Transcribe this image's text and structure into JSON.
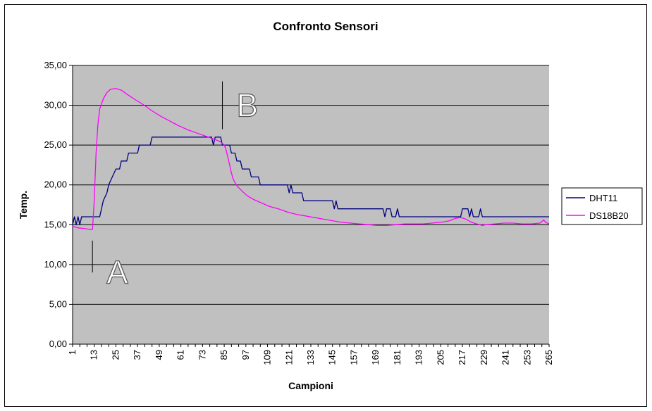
{
  "chart_data": {
    "type": "line",
    "title": "Confronto Sensori",
    "xlabel": "Campioni",
    "ylabel": "Temp.",
    "ylim": [
      0,
      35
    ],
    "xlim": [
      1,
      265
    ],
    "grid": true,
    "legend_position": "right",
    "plot_background": "#c0c0c0",
    "y_ticks": [
      "0,00",
      "5,00",
      "10,00",
      "15,00",
      "20,00",
      "25,00",
      "30,00",
      "35,00"
    ],
    "x_ticks": [
      "1",
      "13",
      "25",
      "37",
      "49",
      "61",
      "73",
      "85",
      "97",
      "109",
      "121",
      "133",
      "145",
      "157",
      "169",
      "181",
      "193",
      "205",
      "217",
      "229",
      "241",
      "253",
      "265"
    ],
    "series": [
      {
        "name": "DHT11",
        "color": "#000080",
        "points": [
          [
            1,
            15
          ],
          [
            2,
            16
          ],
          [
            3,
            15
          ],
          [
            4,
            16
          ],
          [
            5,
            15
          ],
          [
            6,
            16
          ],
          [
            7,
            16
          ],
          [
            13,
            16
          ],
          [
            16,
            16
          ],
          [
            17,
            17
          ],
          [
            18,
            18
          ],
          [
            20,
            19
          ],
          [
            21,
            20
          ],
          [
            23,
            21
          ],
          [
            25,
            22
          ],
          [
            27,
            22
          ],
          [
            28,
            23
          ],
          [
            31,
            23
          ],
          [
            32,
            24
          ],
          [
            37,
            24
          ],
          [
            38,
            25
          ],
          [
            44,
            25
          ],
          [
            45,
            26
          ],
          [
            78,
            26
          ],
          [
            79,
            25
          ],
          [
            80,
            26
          ],
          [
            83,
            26
          ],
          [
            84,
            25
          ],
          [
            88,
            25
          ],
          [
            89,
            24
          ],
          [
            91,
            24
          ],
          [
            92,
            23
          ],
          [
            94,
            23
          ],
          [
            95,
            22
          ],
          [
            99,
            22
          ],
          [
            100,
            21
          ],
          [
            104,
            21
          ],
          [
            105,
            20
          ],
          [
            120,
            20
          ],
          [
            121,
            19
          ],
          [
            122,
            20
          ],
          [
            123,
            19
          ],
          [
            128,
            19
          ],
          [
            129,
            18
          ],
          [
            145,
            18
          ],
          [
            146,
            17
          ],
          [
            147,
            18
          ],
          [
            148,
            17
          ],
          [
            173,
            17
          ],
          [
            174,
            16
          ],
          [
            175,
            17
          ],
          [
            177,
            17
          ],
          [
            178,
            16
          ],
          [
            180,
            16
          ],
          [
            181,
            17
          ],
          [
            182,
            16
          ],
          [
            216,
            16
          ],
          [
            217,
            17
          ],
          [
            220,
            17
          ],
          [
            221,
            16
          ],
          [
            222,
            17
          ],
          [
            223,
            16
          ],
          [
            226,
            16
          ],
          [
            227,
            17
          ],
          [
            228,
            16
          ],
          [
            265,
            16
          ]
        ]
      },
      {
        "name": "DS18B20",
        "color": "#ff00ff",
        "points": [
          [
            1,
            14.8
          ],
          [
            4,
            14.6
          ],
          [
            8,
            14.5
          ],
          [
            11,
            14.4
          ],
          [
            12,
            14.4
          ],
          [
            13,
            18
          ],
          [
            14,
            24
          ],
          [
            15,
            27.5
          ],
          [
            16,
            29.5
          ],
          [
            18,
            30.8
          ],
          [
            20,
            31.6
          ],
          [
            22,
            32
          ],
          [
            25,
            32.1
          ],
          [
            28,
            31.9
          ],
          [
            31,
            31.4
          ],
          [
            35,
            30.8
          ],
          [
            40,
            30.1
          ],
          [
            45,
            29.3
          ],
          [
            50,
            28.6
          ],
          [
            55,
            28
          ],
          [
            60,
            27.4
          ],
          [
            65,
            26.9
          ],
          [
            70,
            26.5
          ],
          [
            75,
            26.1
          ],
          [
            80,
            25.7
          ],
          [
            83,
            25.4
          ],
          [
            85,
            25
          ],
          [
            86,
            24.4
          ],
          [
            87,
            23.5
          ],
          [
            88,
            22.5
          ],
          [
            89,
            21.5
          ],
          [
            90,
            20.7
          ],
          [
            92,
            19.9
          ],
          [
            95,
            19.2
          ],
          [
            98,
            18.6
          ],
          [
            101,
            18.2
          ],
          [
            105,
            17.8
          ],
          [
            110,
            17.3
          ],
          [
            115,
            17
          ],
          [
            120,
            16.6
          ],
          [
            125,
            16.3
          ],
          [
            130,
            16.1
          ],
          [
            135,
            15.9
          ],
          [
            140,
            15.7
          ],
          [
            145,
            15.5
          ],
          [
            150,
            15.3
          ],
          [
            155,
            15.2
          ],
          [
            160,
            15.1
          ],
          [
            165,
            15
          ],
          [
            170,
            14.9
          ],
          [
            175,
            14.9
          ],
          [
            180,
            15
          ],
          [
            185,
            15.1
          ],
          [
            190,
            15.1
          ],
          [
            195,
            15.1
          ],
          [
            200,
            15.2
          ],
          [
            205,
            15.3
          ],
          [
            210,
            15.5
          ],
          [
            213,
            15.8
          ],
          [
            216,
            15.9
          ],
          [
            219,
            15.7
          ],
          [
            222,
            15.3
          ],
          [
            225,
            15.1
          ],
          [
            228,
            14.9
          ],
          [
            230,
            15
          ],
          [
            235,
            15.1
          ],
          [
            240,
            15.2
          ],
          [
            245,
            15.2
          ],
          [
            250,
            15.1
          ],
          [
            255,
            15.1
          ],
          [
            260,
            15.2
          ],
          [
            262,
            15.6
          ],
          [
            263,
            15.3
          ],
          [
            265,
            15.1
          ]
        ]
      }
    ],
    "annotations": [
      {
        "text": "A",
        "x": 12,
        "y": 9,
        "marker_from": 9,
        "marker_to": 13
      },
      {
        "text": "B",
        "x": 84,
        "y": 30,
        "marker_from": 27,
        "marker_to": 33
      }
    ]
  }
}
